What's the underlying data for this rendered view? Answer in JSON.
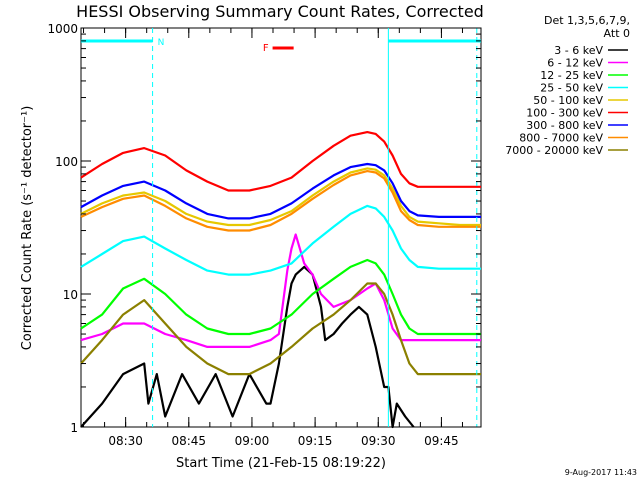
{
  "chart_data": {
    "type": "line",
    "title": "HESSI Observing Summary Count Rates, Corrected",
    "ylabel": "Corrected Count Rate (s⁻¹ detector⁻¹)",
    "xlabel": "Start Time (21-Feb-15 08:19:22)",
    "footer": "9-Aug-2017 11:43",
    "y_scale": "log",
    "ylim": [
      1,
      1000
    ],
    "xlim_minutes": [
      0,
      95
    ],
    "y_ticks": [
      {
        "value": 1,
        "label": "1"
      },
      {
        "value": 10,
        "label": "10"
      },
      {
        "value": 100,
        "label": "100"
      },
      {
        "value": 1000,
        "label": "1000"
      }
    ],
    "x_ticks": [
      {
        "minute": 10.6,
        "label": "08:30"
      },
      {
        "minute": 25.6,
        "label": "08:45"
      },
      {
        "minute": 40.6,
        "label": "09:00"
      },
      {
        "minute": 55.6,
        "label": "09:15"
      },
      {
        "minute": 70.6,
        "label": "09:30"
      },
      {
        "minute": 85.6,
        "label": "09:45"
      }
    ],
    "legend": {
      "header_line1": "Det 1,3,5,6,7,9,",
      "header_line2": "Att 0",
      "entries": [
        {
          "label": "3 - 6 keV",
          "color": "#000000"
        },
        {
          "label": "6 - 12 keV",
          "color": "#ff00ff"
        },
        {
          "label": "12 - 25 keV",
          "color": "#00ff00"
        },
        {
          "label": "25 - 50 keV",
          "color": "#00ffff"
        },
        {
          "label": "50 - 100 keV",
          "color": "#e6c800"
        },
        {
          "label": "100 - 300 keV",
          "color": "#ff0000"
        },
        {
          "label": "300 - 800 keV",
          "color": "#0000ff"
        },
        {
          "label": "800 - 7000 keV",
          "color": "#ff8c00"
        },
        {
          "label": "7000 - 20000 keV",
          "color": "#8b8000"
        }
      ]
    },
    "series": [
      {
        "name": "3 - 6 keV",
        "color": "#000000",
        "x": [
          0,
          5,
          10,
          15,
          16,
          18,
          20,
          24,
          28,
          32,
          36,
          40,
          44,
          45,
          47,
          49,
          50,
          51,
          53,
          55,
          57,
          58,
          60,
          62,
          64,
          66,
          68,
          70,
          72,
          73,
          74,
          75,
          77,
          79
        ],
        "y": [
          1,
          1.5,
          2.5,
          3,
          1.5,
          2.5,
          1.2,
          2.5,
          1.5,
          2.5,
          1.2,
          2.5,
          1.5,
          1.5,
          3,
          8,
          12,
          14,
          16,
          14,
          8,
          4.5,
          5,
          6,
          7,
          8,
          7,
          4,
          2,
          2,
          1,
          1.5,
          1.2,
          1
        ]
      },
      {
        "name": "6 - 12 keV",
        "color": "#ff00ff",
        "x": [
          0,
          5,
          10,
          15,
          20,
          25,
          30,
          35,
          40,
          45,
          47,
          49,
          50,
          51,
          53,
          55,
          57,
          60,
          64,
          68,
          70,
          72,
          74,
          76,
          78,
          80,
          85,
          90,
          95
        ],
        "y": [
          4.5,
          5,
          6,
          6,
          5,
          4.5,
          4,
          4,
          4,
          4.5,
          5,
          15,
          22,
          28,
          17,
          14,
          10,
          8,
          9,
          11,
          12,
          9,
          5.5,
          4.5,
          4.5,
          4.5,
          4.5,
          4.5,
          4.5
        ]
      },
      {
        "name": "12 - 25 keV",
        "color": "#00ff00",
        "x": [
          0,
          5,
          10,
          15,
          20,
          25,
          30,
          35,
          40,
          45,
          50,
          55,
          60,
          64,
          68,
          70,
          72,
          74,
          76,
          78,
          80,
          85,
          90,
          95
        ],
        "y": [
          5.5,
          7,
          11,
          13,
          10,
          7,
          5.5,
          5,
          5,
          5.5,
          7,
          10,
          13,
          16,
          18,
          17,
          14,
          10,
          7,
          5.5,
          5,
          5,
          5,
          5
        ]
      },
      {
        "name": "25 - 50 keV",
        "color": "#00ffff",
        "x": [
          0,
          5,
          10,
          15,
          20,
          25,
          30,
          35,
          40,
          45,
          50,
          55,
          60,
          64,
          68,
          70,
          72,
          74,
          76,
          78,
          80,
          85,
          90,
          95
        ],
        "y": [
          16,
          20,
          25,
          27,
          22,
          18,
          15,
          14,
          14,
          15,
          17,
          24,
          32,
          40,
          46,
          44,
          38,
          30,
          22,
          18,
          16,
          15.5,
          15.5,
          15.5
        ]
      },
      {
        "name": "50 - 100 keV",
        "color": "#e6c800",
        "x": [
          0,
          5,
          10,
          15,
          20,
          25,
          30,
          35,
          40,
          45,
          50,
          55,
          60,
          64,
          68,
          70,
          72,
          74,
          76,
          78,
          80,
          85,
          90,
          95
        ],
        "y": [
          40,
          48,
          55,
          58,
          50,
          40,
          35,
          33,
          33,
          36,
          42,
          55,
          70,
          82,
          88,
          86,
          78,
          62,
          46,
          38,
          35,
          34,
          33,
          33
        ]
      },
      {
        "name": "100 - 300 keV",
        "color": "#ff0000",
        "x": [
          0,
          5,
          10,
          15,
          20,
          25,
          30,
          35,
          40,
          45,
          50,
          55,
          60,
          64,
          68,
          70,
          72,
          74,
          76,
          78,
          80,
          85,
          90,
          95
        ],
        "y": [
          75,
          95,
          115,
          125,
          110,
          85,
          70,
          60,
          60,
          65,
          75,
          100,
          130,
          155,
          165,
          160,
          140,
          110,
          80,
          68,
          64,
          64,
          64,
          64
        ]
      },
      {
        "name": "300 - 800 keV",
        "color": "#0000ff",
        "x": [
          0,
          5,
          10,
          15,
          20,
          25,
          30,
          35,
          40,
          45,
          50,
          55,
          60,
          64,
          68,
          70,
          72,
          74,
          76,
          78,
          80,
          85,
          90,
          95
        ],
        "y": [
          45,
          55,
          65,
          70,
          60,
          48,
          40,
          37,
          37,
          40,
          48,
          62,
          78,
          90,
          95,
          93,
          85,
          68,
          50,
          42,
          39,
          38,
          38,
          38
        ]
      },
      {
        "name": "800 - 7000 keV",
        "color": "#ff8c00",
        "x": [
          0,
          5,
          10,
          15,
          20,
          25,
          30,
          35,
          40,
          45,
          50,
          55,
          60,
          64,
          68,
          70,
          72,
          74,
          76,
          78,
          80,
          85,
          90,
          95
        ],
        "y": [
          38,
          45,
          52,
          55,
          46,
          37,
          32,
          30,
          30,
          33,
          40,
          52,
          66,
          78,
          84,
          82,
          74,
          58,
          42,
          36,
          33,
          32,
          32,
          32
        ]
      },
      {
        "name": "7000 - 20000 keV",
        "color": "#8b8000",
        "x": [
          0,
          5,
          10,
          15,
          20,
          25,
          30,
          35,
          40,
          45,
          50,
          55,
          60,
          64,
          68,
          70,
          72,
          74,
          76,
          78,
          80,
          85,
          90,
          95
        ],
        "y": [
          3,
          4.5,
          7,
          9,
          6,
          4,
          3,
          2.5,
          2.5,
          3,
          4,
          5.5,
          7,
          9,
          12,
          12,
          10,
          7,
          4.5,
          3,
          2.5,
          2.5,
          2.5,
          2.5
        ]
      }
    ],
    "annotations": {
      "night_label": "N",
      "flare_label": "F",
      "night_color": "#00ffff",
      "flare_color": "#ff0000",
      "night_bars_minutes": [
        [
          0,
          17
        ],
        [
          73,
          95
        ]
      ],
      "night_dashed_lines_minutes": [
        17,
        94
      ],
      "night_solid_line_minutes": 73,
      "flare_bar_minutes": [
        45.5,
        50.5
      ]
    }
  }
}
